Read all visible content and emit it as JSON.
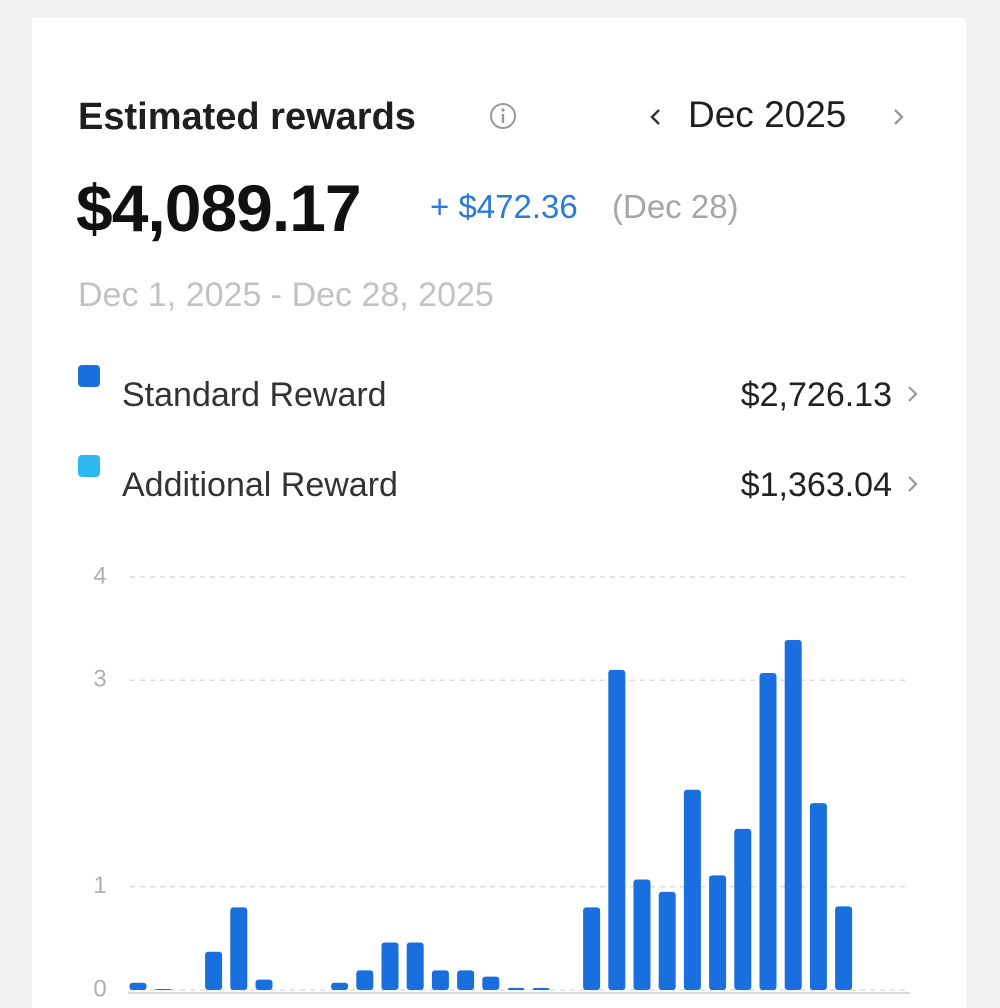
{
  "header": {
    "title": "Estimated rewards",
    "month": "Dec 2025"
  },
  "summary": {
    "total": "$4,089.17",
    "change": "+ $472.36",
    "change_date": "(Dec 28)",
    "date_range": "Dec 1, 2025 - Dec 28, 2025"
  },
  "breakdown": [
    {
      "name": "Standard Reward",
      "amount": "$2,726.13"
    },
    {
      "name": "Additional Reward",
      "amount": "$1,363.04"
    }
  ],
  "chart_data": {
    "type": "bar",
    "color": "#1a6fdf",
    "categories": [
      null,
      null,
      null,
      null,
      null,
      null,
      null,
      null,
      null,
      null,
      null,
      null,
      null,
      null,
      null,
      null,
      null,
      null,
      null,
      null,
      null,
      null,
      null,
      null,
      null,
      null,
      null,
      null,
      null
    ],
    "values": [
      0.07,
      0.01,
      0,
      0.37,
      0.8,
      0.1,
      0,
      0,
      0.07,
      0.19,
      0.46,
      0.46,
      0.19,
      0.19,
      0.13,
      0.02,
      0.02,
      0,
      0.8,
      3.1,
      1.07,
      0.95,
      1.94,
      1.11,
      1.56,
      3.07,
      3.39,
      1.81,
      0.81
    ],
    "ylim": [
      0,
      4
    ],
    "yticks": [
      0,
      1,
      3,
      4
    ],
    "grid": true
  }
}
